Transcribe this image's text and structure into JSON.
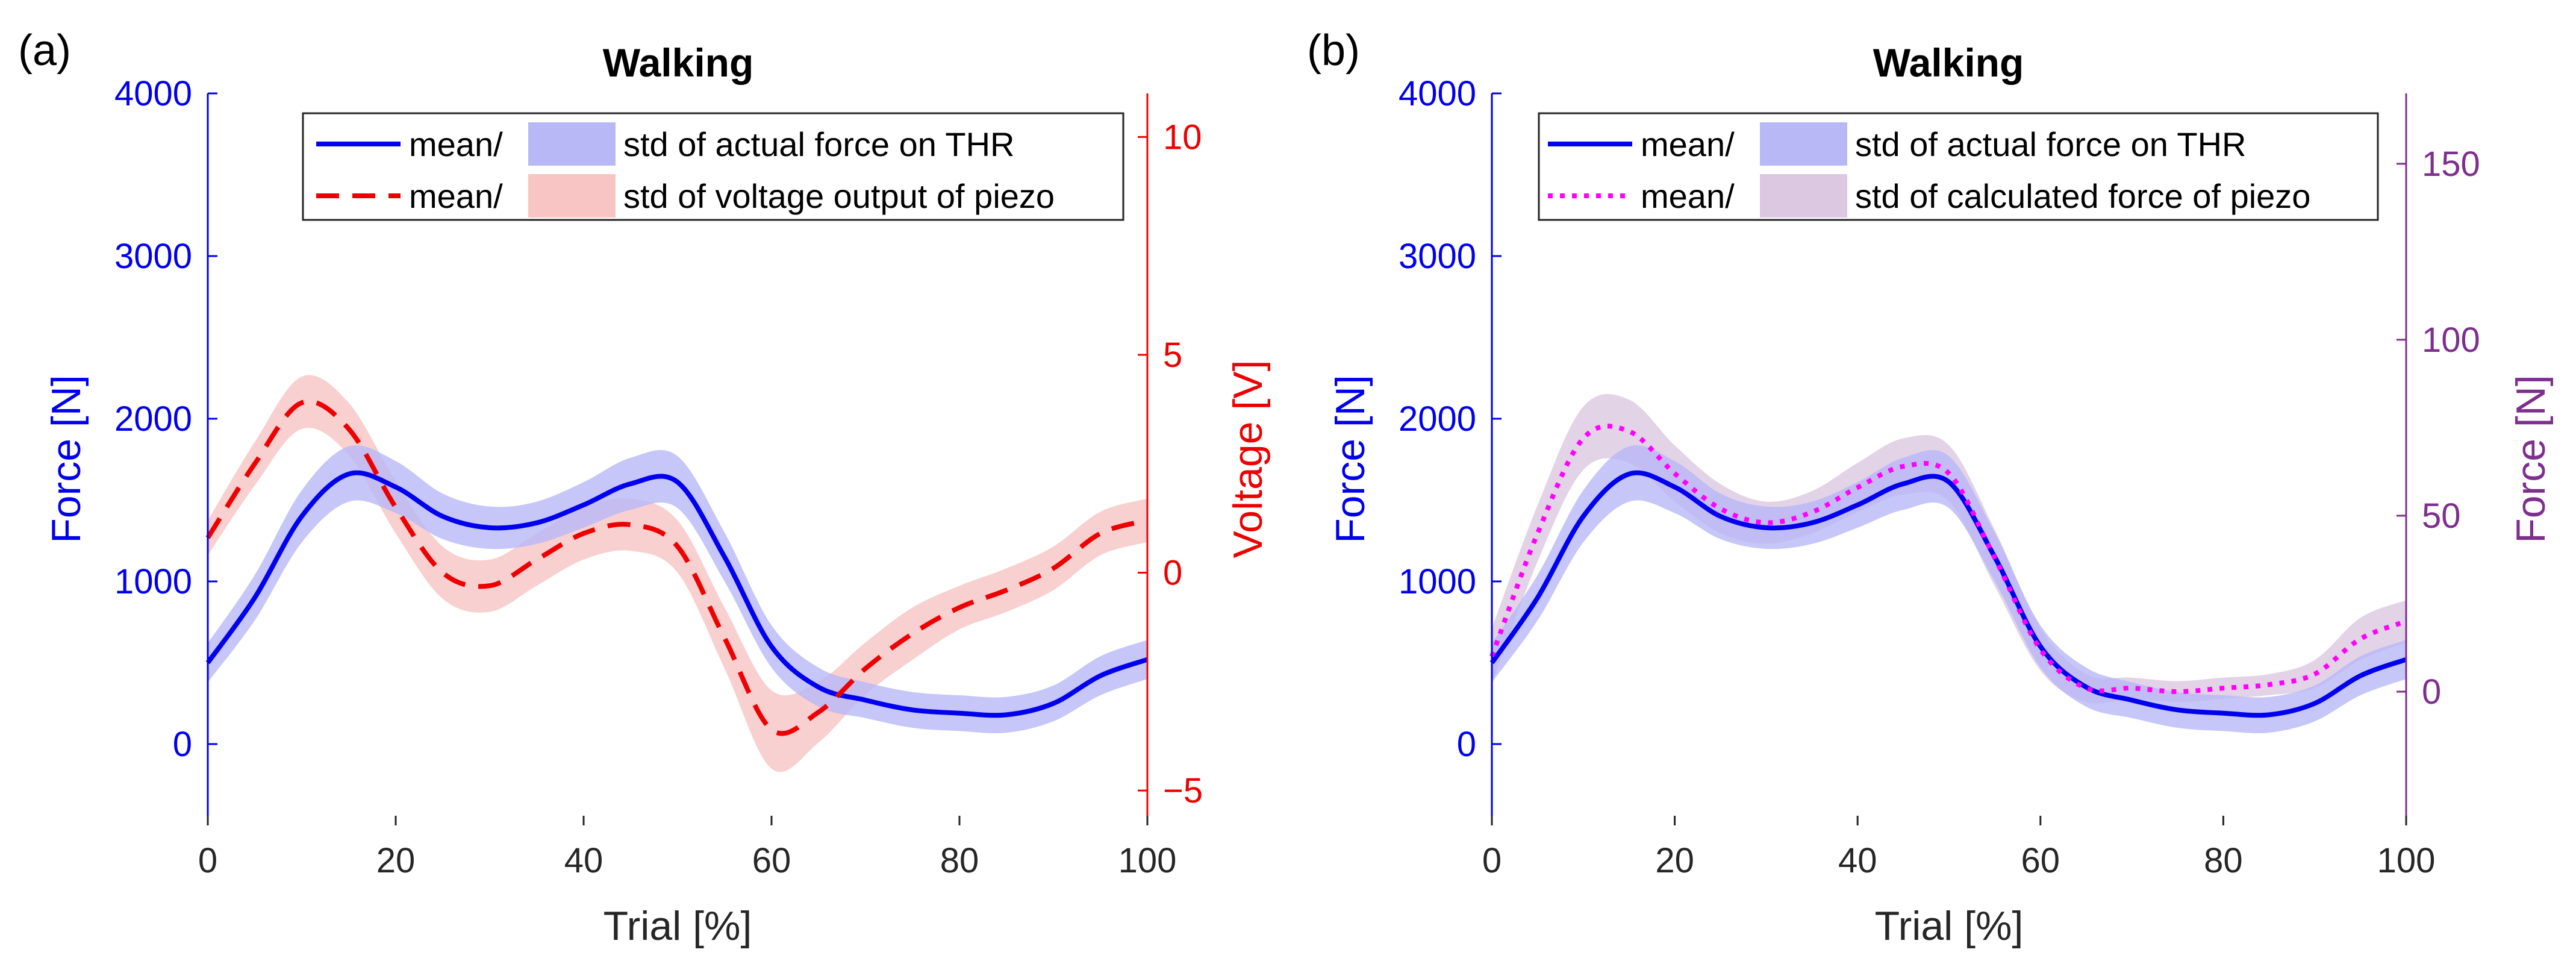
{
  "chart_data": [
    {
      "type": "line",
      "panel_label": "(a)",
      "title": "Walking",
      "xlabel": "Trial [%]",
      "ylabel_left": "Force [N]",
      "ylabel_right": "Voltage [V]",
      "xlim": [
        0,
        100
      ],
      "ylim_left": [
        -500,
        4000
      ],
      "ylim_right": [
        -5.8,
        11.0
      ],
      "xticks": [
        "0",
        "20",
        "40",
        "60",
        "80",
        "100"
      ],
      "yticks_left": [
        "0",
        "1000",
        "2000",
        "3000",
        "4000"
      ],
      "yticks_right": [
        "-5",
        "0",
        "5",
        "10"
      ],
      "left_color": "#0000ee",
      "right_color": "#ee0000",
      "legend": [
        {
          "mean_label": "mean/",
          "std_label": "std of actual force on THR"
        },
        {
          "mean_label": "mean/",
          "std_label": "std of voltage output of piezo"
        }
      ],
      "series": [
        {
          "name": "actual force on THR",
          "axis": "left",
          "color": "#0000ee",
          "band_color": "#b8b8f7",
          "line_style": "solid",
          "x": [
            0,
            5,
            10,
            15,
            20,
            25,
            30,
            35,
            40,
            45,
            50,
            55,
            60,
            65,
            70,
            75,
            80,
            85,
            90,
            95,
            100
          ],
          "mean": [
            500,
            900,
            1400,
            1660,
            1580,
            1400,
            1330,
            1360,
            1470,
            1600,
            1610,
            1150,
            600,
            350,
            270,
            210,
            190,
            180,
            250,
            420,
            520
          ],
          "std": [
            120,
            140,
            160,
            170,
            160,
            140,
            130,
            130,
            140,
            160,
            160,
            150,
            130,
            120,
            110,
            110,
            110,
            110,
            110,
            120,
            120
          ]
        },
        {
          "name": "voltage output of piezo",
          "axis": "right",
          "color": "#ee0000",
          "band_color": "#f8c4c4",
          "line_style": "dashed",
          "x": [
            0,
            5,
            10,
            15,
            20,
            25,
            30,
            35,
            40,
            45,
            50,
            55,
            60,
            65,
            70,
            75,
            80,
            85,
            90,
            95,
            100
          ],
          "mean": [
            0.8,
            2.5,
            3.9,
            3.3,
            1.5,
            0.0,
            -0.3,
            0.3,
            0.9,
            1.1,
            0.6,
            -1.5,
            -3.6,
            -3.2,
            -2.2,
            -1.4,
            -0.8,
            -0.4,
            0.1,
            0.9,
            1.2
          ],
          "std": [
            0.4,
            0.5,
            0.6,
            0.6,
            0.6,
            0.6,
            0.6,
            0.6,
            0.6,
            0.6,
            0.6,
            0.7,
            0.9,
            0.7,
            0.6,
            0.6,
            0.5,
            0.5,
            0.5,
            0.5,
            0.5
          ]
        }
      ]
    },
    {
      "type": "line",
      "panel_label": "(b)",
      "title": "Walking",
      "xlabel": "Trial [%]",
      "ylabel_left": "Force [N]",
      "ylabel_right": "Force [N]",
      "xlim": [
        0,
        100
      ],
      "ylim_left": [
        -500,
        4000
      ],
      "ylim_right": [
        -38,
        170
      ],
      "xticks": [
        "0",
        "20",
        "40",
        "60",
        "80",
        "100"
      ],
      "yticks_left": [
        "0",
        "1000",
        "2000",
        "3000",
        "4000"
      ],
      "yticks_right": [
        "0",
        "50",
        "100",
        "150"
      ],
      "left_color": "#0000ee",
      "right_color": "#7e2f8e",
      "legend": [
        {
          "mean_label": "mean/",
          "std_label": "std of actual force on THR"
        },
        {
          "mean_label": "mean/",
          "std_label": "std of calculated force of piezo"
        }
      ],
      "series": [
        {
          "name": "actual force on THR",
          "axis": "left",
          "color": "#0000ee",
          "band_color": "#b8b8f7",
          "line_style": "solid",
          "x": [
            0,
            5,
            10,
            15,
            20,
            25,
            30,
            35,
            40,
            45,
            50,
            55,
            60,
            65,
            70,
            75,
            80,
            85,
            90,
            95,
            100
          ],
          "mean": [
            500,
            900,
            1400,
            1660,
            1580,
            1400,
            1330,
            1360,
            1470,
            1600,
            1610,
            1150,
            600,
            350,
            270,
            210,
            190,
            180,
            250,
            420,
            520
          ],
          "std": [
            120,
            140,
            160,
            170,
            160,
            140,
            130,
            130,
            140,
            160,
            160,
            150,
            130,
            120,
            110,
            110,
            110,
            110,
            110,
            120,
            120
          ]
        },
        {
          "name": "calculated force of piezo",
          "axis": "right",
          "color": "#ff00ff",
          "band_color": "#dcc8e0",
          "line_style": "dotted",
          "x": [
            0,
            5,
            10,
            15,
            20,
            25,
            30,
            35,
            40,
            45,
            50,
            55,
            60,
            65,
            70,
            75,
            80,
            85,
            90,
            95,
            100
          ],
          "mean": [
            10,
            45,
            72,
            74,
            62,
            52,
            48,
            51,
            58,
            64,
            62,
            38,
            12,
            1,
            1,
            0,
            1,
            2,
            5,
            15,
            20
          ],
          "std": [
            8,
            8,
            9,
            9,
            8,
            7,
            6,
            6,
            7,
            8,
            8,
            8,
            6,
            4,
            3,
            3,
            3,
            3,
            4,
            6,
            6
          ]
        }
      ]
    }
  ]
}
